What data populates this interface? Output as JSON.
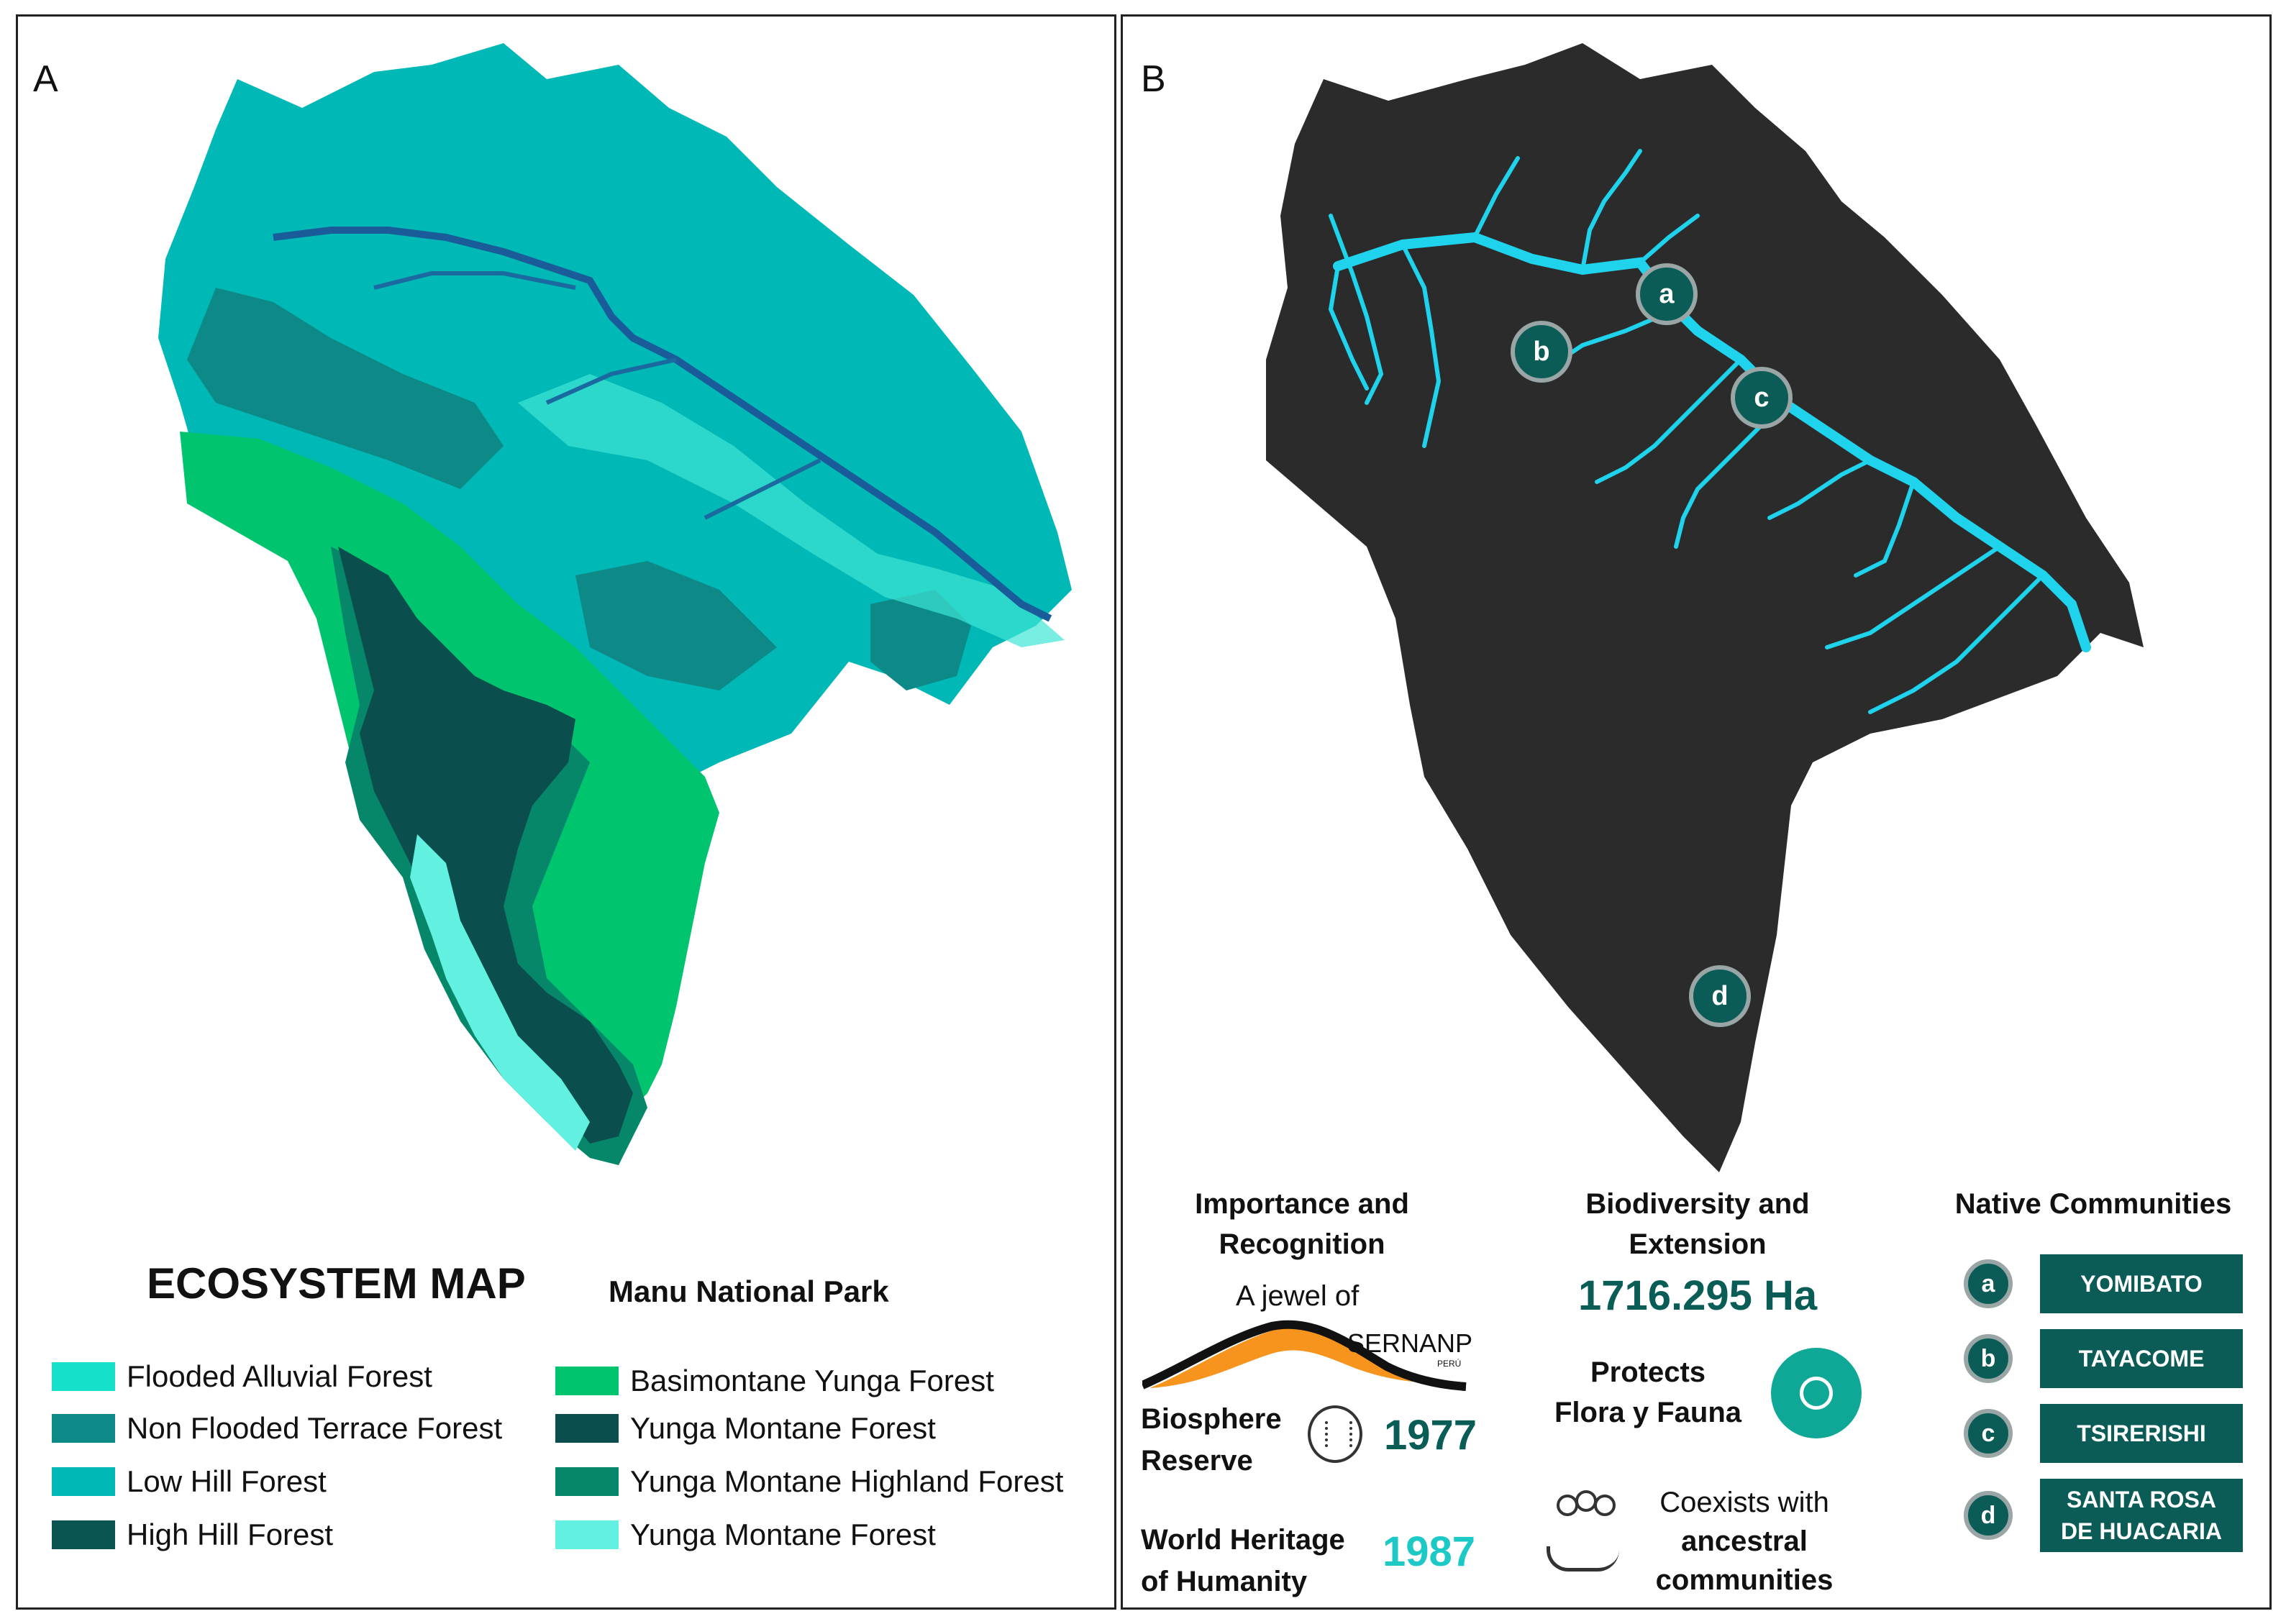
{
  "panel_a": {
    "letter": "A",
    "title": "ECOSYSTEM MAP",
    "subtitle": "Manu National Park",
    "legend": [
      {
        "label": "Flooded Alluvial Forest",
        "color": "#14e0cc"
      },
      {
        "label": "Non Flooded Terrace Forest",
        "color": "#0d8a87"
      },
      {
        "label": "Low Hill Forest",
        "color": "#00b8b5"
      },
      {
        "label": "High Hill Forest",
        "color": "#0a5551"
      },
      {
        "label": "Basimontane Yunga Forest",
        "color": "#00c46e"
      },
      {
        "label": "Yunga Montane Forest",
        "color": "#0b4e4e"
      },
      {
        "label": "Yunga Montane Highland Forest",
        "color": "#07876a"
      },
      {
        "label": "Yunga Montane Forest",
        "color": "#62f0e0"
      }
    ]
  },
  "panel_b": {
    "letter": "B",
    "markers": [
      "a",
      "b",
      "c",
      "d"
    ],
    "importance": {
      "title_line1": "Importance and",
      "title_line2": "Recognition",
      "jewel_text": "A jewel of",
      "logo_text": "SERNANP",
      "logo_sub": "PERÚ",
      "biosphere_line1": "Biosphere",
      "biosphere_line2": "Reserve",
      "biosphere_year": "1977",
      "heritage_line1": "World Heritage",
      "heritage_line2": "of Humanity",
      "heritage_year": "1987"
    },
    "biodiversity": {
      "title_line1": "Biodiversity and",
      "title_line2": "Extension",
      "area": "1716.295 Ha",
      "protects_line1": "Protects",
      "protects_line2": "Flora y Fauna",
      "coexists_line1": "Coexists with",
      "coexists_line2": "ancestral",
      "coexists_line3": "communities"
    },
    "communities": {
      "title": "Native Communities",
      "items": [
        {
          "key": "a",
          "name": "YOMIBATO"
        },
        {
          "key": "b",
          "name": "TAYACOME"
        },
        {
          "key": "c",
          "name": "TSIRERISHI"
        },
        {
          "key": "d",
          "name_line1": "SANTA ROSA",
          "name_line2": "DE HUACARIA"
        }
      ]
    },
    "colors": {
      "park": "#2b2b2b",
      "river": "#1fd3ec",
      "teal_dark": "#0b5b57",
      "teal_text": "#0a5c57",
      "cyan_text": "#1cc9c6",
      "logo_orange": "#f7941d"
    }
  }
}
